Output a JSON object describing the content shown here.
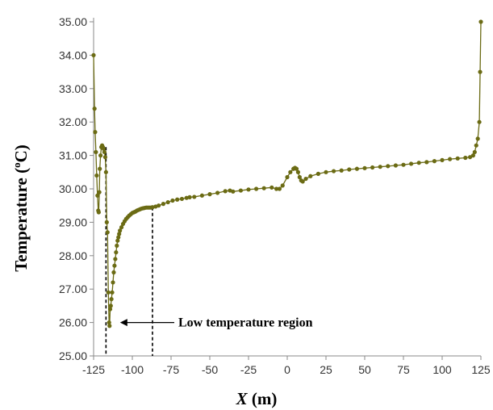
{
  "chart_data": {
    "type": "scatter",
    "title": "",
    "xlabel_main": "X",
    "xlabel_unit": "(m)",
    "ylabel": "Temperature (",
    "ylabel_sup": "o",
    "ylabel_unit": "C)",
    "xlim": [
      -125,
      125
    ],
    "ylim": [
      25,
      35
    ],
    "xticks": [
      -125,
      -100,
      -75,
      -50,
      -25,
      0,
      25,
      50,
      75,
      100,
      125
    ],
    "yticks": [
      25,
      26,
      27,
      28,
      29,
      30,
      31,
      32,
      33,
      34,
      35
    ],
    "ytick_labels": [
      "25.00",
      "26.00",
      "27.00",
      "28.00",
      "29.00",
      "30.00",
      "31.00",
      "32.00",
      "33.00",
      "34.00",
      "35.00"
    ],
    "grid": false,
    "legend": "none",
    "color": "#6b6b14",
    "annotation": {
      "text": "Low temperature region",
      "arrow_to_x": -110,
      "y": 26.0,
      "region_x": [
        -117,
        -87
      ]
    },
    "series": [
      {
        "x": [
          -125.0,
          -124.4,
          -124.0,
          -123.5,
          -123.0,
          -122.5,
          -122.0,
          -121.7,
          -121.3,
          -121.0,
          -120.5,
          -120.0,
          -119.5,
          -119.0,
          -118.5,
          -118.0,
          -117.5,
          -117.0,
          -116.5,
          -116.0,
          -115.5,
          -115.0,
          -114.7,
          -114.3,
          -113.9,
          -113.5,
          -113.0,
          -112.5,
          -112.0,
          -111.5,
          -111.0,
          -110.5,
          -110.0,
          -109.5,
          -109.0,
          -108.5,
          -108.0,
          -107.0,
          -106.0,
          -105.0,
          -104.0,
          -103.0,
          -102.0,
          -101.0,
          -100.0,
          -99.0,
          -98.0,
          -97.0,
          -96.0,
          -95.0,
          -94.0,
          -93.0,
          -92.0,
          -91.0,
          -90.0,
          -89.0,
          -88.0,
          -87.0,
          -85.0,
          -83.0,
          -80.0,
          -77.0,
          -74.0,
          -71.0,
          -68.0,
          -65.0,
          -63.0,
          -60.0,
          -55.0,
          -50.0,
          -45.0,
          -40.0,
          -37.0,
          -35.0,
          -30.0,
          -25.0,
          -20.0,
          -15.0,
          -10.0,
          -7.0,
          -5.0,
          -3.0,
          0.0,
          2.0,
          4.0,
          5.0,
          6.0,
          7.0,
          8.0,
          9.0,
          10.0,
          12.0,
          15.0,
          20.0,
          25.0,
          30.0,
          35.0,
          40.0,
          45.0,
          50.0,
          55.0,
          60.0,
          65.0,
          70.0,
          75.0,
          80.0,
          85.0,
          90.0,
          95.0,
          100.0,
          105.0,
          110.0,
          115.0,
          118.0,
          120.0,
          121.0,
          122.0,
          123.0,
          124.0,
          124.5,
          125.0
        ],
        "y": [
          34.0,
          32.4,
          31.7,
          31.1,
          30.4,
          29.8,
          29.35,
          29.3,
          29.9,
          30.6,
          31.0,
          31.25,
          31.3,
          31.25,
          31.2,
          31.1,
          30.95,
          30.5,
          29.0,
          28.7,
          26.9,
          26.0,
          25.9,
          26.4,
          26.5,
          26.7,
          26.9,
          27.2,
          27.5,
          27.7,
          27.9,
          28.1,
          28.3,
          28.45,
          28.55,
          28.65,
          28.75,
          28.85,
          28.95,
          29.03,
          29.1,
          29.15,
          29.2,
          29.24,
          29.28,
          29.3,
          29.32,
          29.35,
          29.37,
          29.39,
          29.41,
          29.42,
          29.43,
          29.44,
          29.44,
          29.44,
          29.44,
          29.45,
          29.47,
          29.5,
          29.55,
          29.6,
          29.65,
          29.68,
          29.7,
          29.73,
          29.75,
          29.76,
          29.8,
          29.84,
          29.88,
          29.93,
          29.95,
          29.92,
          29.95,
          29.98,
          30.0,
          30.02,
          30.04,
          30.0,
          30.0,
          30.1,
          30.35,
          30.5,
          30.6,
          30.63,
          30.6,
          30.5,
          30.35,
          30.25,
          30.22,
          30.3,
          30.38,
          30.45,
          30.5,
          30.53,
          30.55,
          30.58,
          30.6,
          30.62,
          30.64,
          30.66,
          30.68,
          30.7,
          30.72,
          30.75,
          30.78,
          30.8,
          30.83,
          30.86,
          30.89,
          30.91,
          30.93,
          30.95,
          31.0,
          31.1,
          31.3,
          31.5,
          32.0,
          33.5,
          35.0
        ]
      }
    ]
  }
}
